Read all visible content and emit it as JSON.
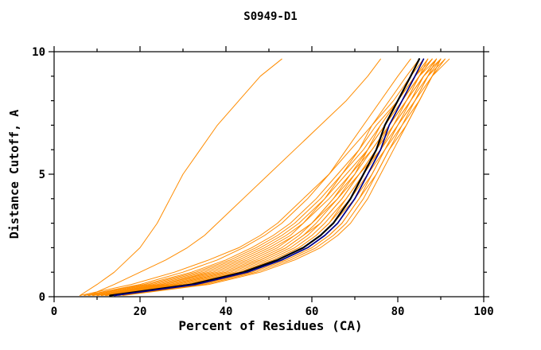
{
  "chart_data": {
    "type": "line",
    "title": "S0949-D1",
    "xlabel": "Percent of Residues (CA)",
    "ylabel": "Distance Cutoff, A",
    "xlim": [
      0,
      100
    ],
    "ylim": [
      0,
      10
    ],
    "xticks": [
      0,
      20,
      40,
      60,
      80,
      100
    ],
    "xticks_minor": [
      10,
      30,
      50,
      70,
      90
    ],
    "yticks": [
      0,
      5,
      10
    ],
    "yticks_minor": [
      1,
      2,
      3,
      4,
      6,
      7,
      8,
      9
    ],
    "grid": "off",
    "legend": "none",
    "colors": {
      "orange": "#ff8c00",
      "black": "#000000",
      "blue": "#00008b"
    },
    "y_grid": [
      0.05,
      0.5,
      1,
      1.5,
      2,
      2.5,
      3,
      4,
      5,
      6,
      7,
      8,
      9,
      9.7
    ],
    "series": [
      {
        "name": "orange-01",
        "color": "orange",
        "x": [
          6,
          10,
          14,
          17,
          20,
          22,
          24,
          27,
          30,
          34,
          38,
          43,
          48,
          53
        ]
      },
      {
        "name": "orange-02",
        "color": "orange",
        "x": [
          8,
          14,
          20,
          26,
          31,
          35,
          38,
          44,
          50,
          56,
          62,
          68,
          73,
          76
        ]
      },
      {
        "name": "orange-03",
        "color": "orange",
        "x": [
          7,
          20,
          30,
          38,
          44,
          49,
          53,
          59,
          64,
          68,
          72,
          76,
          80,
          83
        ]
      },
      {
        "name": "orange-04",
        "color": "orange",
        "x": [
          9,
          25,
          36,
          44,
          50,
          55,
          58,
          63,
          67,
          71,
          74,
          78,
          82,
          85
        ]
      },
      {
        "name": "orange-05",
        "color": "orange",
        "x": [
          11,
          28,
          40,
          48,
          54,
          58,
          61,
          66,
          70,
          73,
          76,
          80,
          84,
          87
        ]
      },
      {
        "name": "orange-06",
        "color": "orange",
        "x": [
          13,
          31,
          43,
          51,
          57,
          61,
          64,
          68,
          72,
          75,
          78,
          81,
          85,
          88
        ]
      },
      {
        "name": "orange-07",
        "color": "orange",
        "x": [
          15,
          34,
          46,
          54,
          60,
          64,
          67,
          71,
          74,
          77,
          80,
          83,
          86,
          89
        ]
      },
      {
        "name": "orange-08",
        "color": "orange",
        "x": [
          10,
          27,
          39,
          47,
          53,
          57,
          60,
          65,
          69,
          73,
          77,
          81,
          85,
          88
        ]
      },
      {
        "name": "orange-09",
        "color": "orange",
        "x": [
          12,
          30,
          42,
          50,
          56,
          60,
          63,
          68,
          72,
          76,
          79,
          83,
          86,
          90
        ]
      },
      {
        "name": "orange-10",
        "color": "orange",
        "x": [
          8,
          22,
          33,
          41,
          47,
          52,
          56,
          62,
          67,
          72,
          76,
          80,
          84,
          87
        ]
      },
      {
        "name": "orange-11",
        "color": "orange",
        "x": [
          14,
          33,
          45,
          53,
          59,
          63,
          66,
          70,
          74,
          77,
          80,
          84,
          87,
          90
        ]
      },
      {
        "name": "orange-12",
        "color": "orange",
        "x": [
          6,
          18,
          28,
          36,
          43,
          48,
          52,
          58,
          64,
          69,
          74,
          79,
          83,
          86
        ]
      },
      {
        "name": "orange-13",
        "color": "orange",
        "x": [
          10,
          26,
          38,
          46,
          52,
          56,
          60,
          65,
          70,
          74,
          78,
          82,
          86,
          89
        ]
      },
      {
        "name": "orange-14",
        "color": "orange",
        "x": [
          12,
          29,
          41,
          49,
          55,
          59,
          62,
          67,
          71,
          75,
          79,
          83,
          87,
          91
        ]
      },
      {
        "name": "orange-15",
        "color": "orange",
        "x": [
          9,
          24,
          35,
          43,
          49,
          54,
          58,
          64,
          69,
          74,
          78,
          82,
          86,
          90
        ]
      },
      {
        "name": "orange-16",
        "color": "orange",
        "x": [
          11,
          28,
          40,
          48,
          54,
          58,
          62,
          67,
          71,
          75,
          78,
          82,
          85,
          88
        ]
      },
      {
        "name": "orange-17",
        "color": "orange",
        "x": [
          13,
          32,
          44,
          52,
          58,
          62,
          65,
          70,
          73,
          76,
          79,
          82,
          85,
          87
        ]
      },
      {
        "name": "orange-18",
        "color": "orange",
        "x": [
          15,
          35,
          47,
          55,
          61,
          65,
          68,
          72,
          75,
          78,
          81,
          84,
          87,
          89
        ]
      },
      {
        "name": "orange-19",
        "color": "orange",
        "x": [
          7,
          21,
          32,
          40,
          46,
          51,
          55,
          61,
          66,
          71,
          75,
          80,
          84,
          88
        ]
      },
      {
        "name": "orange-20",
        "color": "orange",
        "x": [
          10,
          25,
          37,
          45,
          51,
          56,
          60,
          66,
          71,
          76,
          80,
          84,
          88,
          92
        ]
      },
      {
        "name": "orange-21",
        "color": "orange",
        "x": [
          12,
          31,
          43,
          51,
          57,
          61,
          64,
          69,
          73,
          77,
          81,
          85,
          88,
          91
        ]
      },
      {
        "name": "orange-22",
        "color": "orange",
        "x": [
          14,
          34,
          46,
          54,
          60,
          64,
          67,
          71,
          75,
          78,
          82,
          85,
          88,
          90
        ]
      },
      {
        "name": "orange-23",
        "color": "orange",
        "x": [
          8,
          23,
          34,
          42,
          48,
          53,
          57,
          63,
          68,
          73,
          77,
          81,
          85,
          89
        ]
      },
      {
        "name": "orange-24",
        "color": "orange",
        "x": [
          16,
          36,
          48,
          56,
          62,
          66,
          69,
          73,
          76,
          79,
          82,
          85,
          88,
          90
        ]
      },
      {
        "name": "black",
        "color": "black",
        "x": [
          13,
          32,
          44,
          52,
          58,
          62,
          65,
          69,
          72,
          75,
          77,
          80,
          83,
          85
        ]
      },
      {
        "name": "blue",
        "color": "blue",
        "x": [
          14,
          33,
          45,
          53,
          59,
          63,
          66,
          70,
          73,
          76,
          78,
          81,
          84,
          86
        ]
      }
    ]
  }
}
